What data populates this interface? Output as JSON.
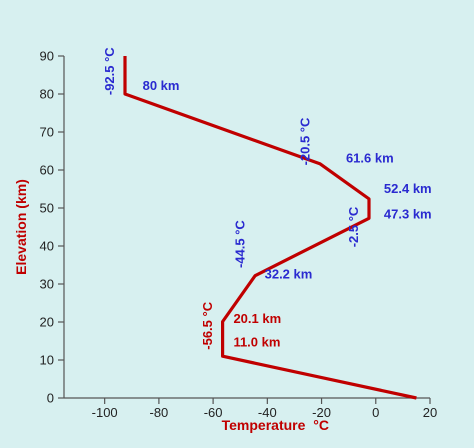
{
  "chart_data": {
    "type": "line",
    "xlabel": "Temperature",
    "xlabel_unit": "°C",
    "ylabel": "Elevation (km)",
    "xlim": [
      -115,
      20
    ],
    "ylim": [
      0,
      90
    ],
    "xticks": [
      -100,
      -80,
      -60,
      -40,
      -20,
      0,
      20
    ],
    "yticks": [
      0,
      10,
      20,
      30,
      40,
      50,
      60,
      70,
      80,
      90
    ],
    "grid": false,
    "series": [
      {
        "x": [
          15,
          -56.5,
          -56.5,
          -44.5,
          -2.5,
          -2.5,
          -20.5,
          -92.5,
          -92.5
        ],
        "y": [
          0,
          11.0,
          20.1,
          32.2,
          47.3,
          52.4,
          61.6,
          80,
          90
        ],
        "color": "#c00000"
      }
    ],
    "annotations": [
      {
        "text": "80 km",
        "x": -86,
        "y": 81,
        "color": "#2a2ad0",
        "rotate": false
      },
      {
        "text": "-92.5 °C",
        "x": -96.5,
        "y": 86,
        "color": "#2a2ad0",
        "rotate": true
      },
      {
        "text": "-20.5 °C",
        "x": -24.5,
        "y": 67.5,
        "color": "#2a2ad0",
        "rotate": true
      },
      {
        "text": "61.6 km",
        "x": -11,
        "y": 62,
        "color": "#2a2ad0",
        "rotate": false
      },
      {
        "text": "52.4 km",
        "x": 3,
        "y": 54,
        "color": "#2a2ad0",
        "rotate": false
      },
      {
        "text": "-2.5 °C",
        "x": -6.5,
        "y": 45,
        "color": "#2a2ad0",
        "rotate": true
      },
      {
        "text": "47.3 km",
        "x": 3,
        "y": 47.2,
        "color": "#2a2ad0",
        "rotate": false
      },
      {
        "text": "-44.5 °C",
        "x": -48.5,
        "y": 40.5,
        "color": "#2a2ad0",
        "rotate": true
      },
      {
        "text": "32.2 km",
        "x": -41,
        "y": 31.5,
        "color": "#2a2ad0",
        "rotate": false
      },
      {
        "text": "-56.5 °C",
        "x": -60.5,
        "y": 19,
        "color": "#c00000",
        "rotate": true
      },
      {
        "text": "20.1 km",
        "x": -52.5,
        "y": 19.8,
        "color": "#c00000",
        "rotate": false
      },
      {
        "text": "11.0 km",
        "x": -52.5,
        "y": 13.5,
        "color": "#c00000",
        "rotate": false
      }
    ],
    "colors": {
      "background": "#d7f0f0",
      "axis": "#555555",
      "tick_label": "#222222",
      "axis_title": "#c00000",
      "line": "#c00000"
    }
  }
}
